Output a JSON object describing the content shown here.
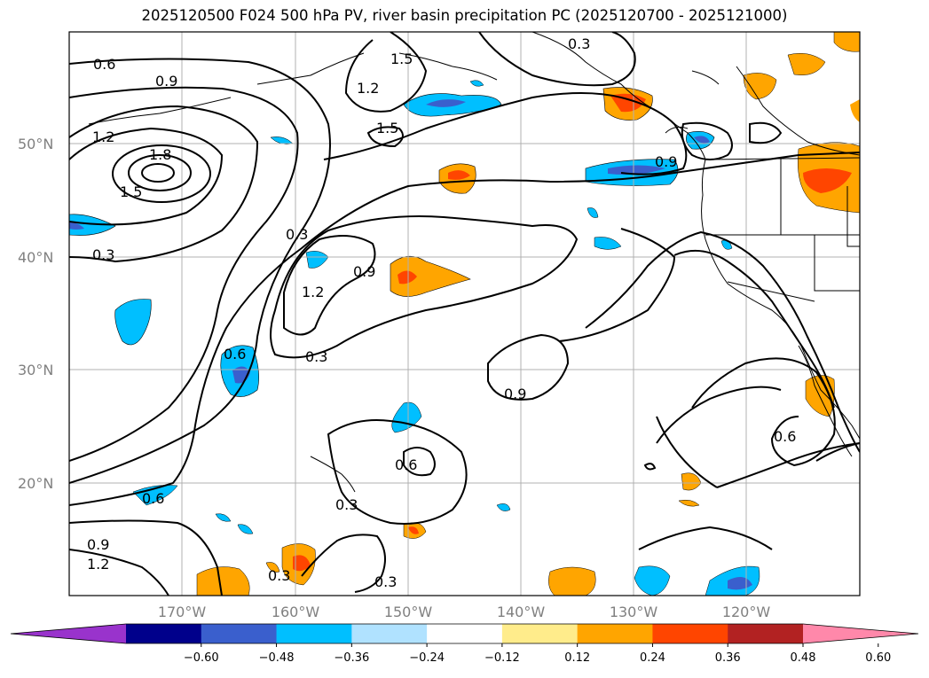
{
  "title": "2025120500 F024 500 hPa PV, river basin precipitation PC (2025120700 - 2025121000)",
  "map": {
    "lat_labels": [
      "50°N",
      "40°N",
      "30°N",
      "20°N"
    ],
    "lon_labels": [
      "170°W",
      "160°W",
      "150°W",
      "140°W",
      "130°W",
      "120°W"
    ],
    "lat_range": [
      10,
      60
    ],
    "lon_range": [
      -180,
      -110
    ],
    "grid": true,
    "contour_labels": [
      {
        "text": "0.6"
      },
      {
        "text": "0.9"
      },
      {
        "text": "1.2"
      },
      {
        "text": "1.8"
      },
      {
        "text": "1.5"
      },
      {
        "text": "0.3"
      },
      {
        "text": "1.2"
      },
      {
        "text": "0.9"
      },
      {
        "text": "0.6"
      },
      {
        "text": "0.3"
      },
      {
        "text": "0.3"
      },
      {
        "text": "0.6"
      },
      {
        "text": "0.3"
      },
      {
        "text": "0.9"
      },
      {
        "text": "1.2"
      },
      {
        "text": "0.3"
      },
      {
        "text": "0.3"
      },
      {
        "text": "0.6"
      },
      {
        "text": "0.9"
      },
      {
        "text": "1.2"
      },
      {
        "text": "1.5"
      },
      {
        "text": "1.5"
      },
      {
        "text": "0.6"
      },
      {
        "text": "0.3"
      },
      {
        "text": "0.9"
      }
    ]
  },
  "colorbar": {
    "ticks": [
      "−0.60",
      "−0.48",
      "−0.36",
      "−0.24",
      "−0.12",
      "0.12",
      "0.24",
      "0.36",
      "0.48",
      "0.60"
    ],
    "colors": [
      "#9933cc",
      "#00008b",
      "#3a5fcd",
      "#00bfff",
      "#b0e2ff",
      "#ffffff",
      "#ffec8b",
      "#ffa500",
      "#ff4500",
      "#b22222",
      "#ff88aa"
    ]
  }
}
